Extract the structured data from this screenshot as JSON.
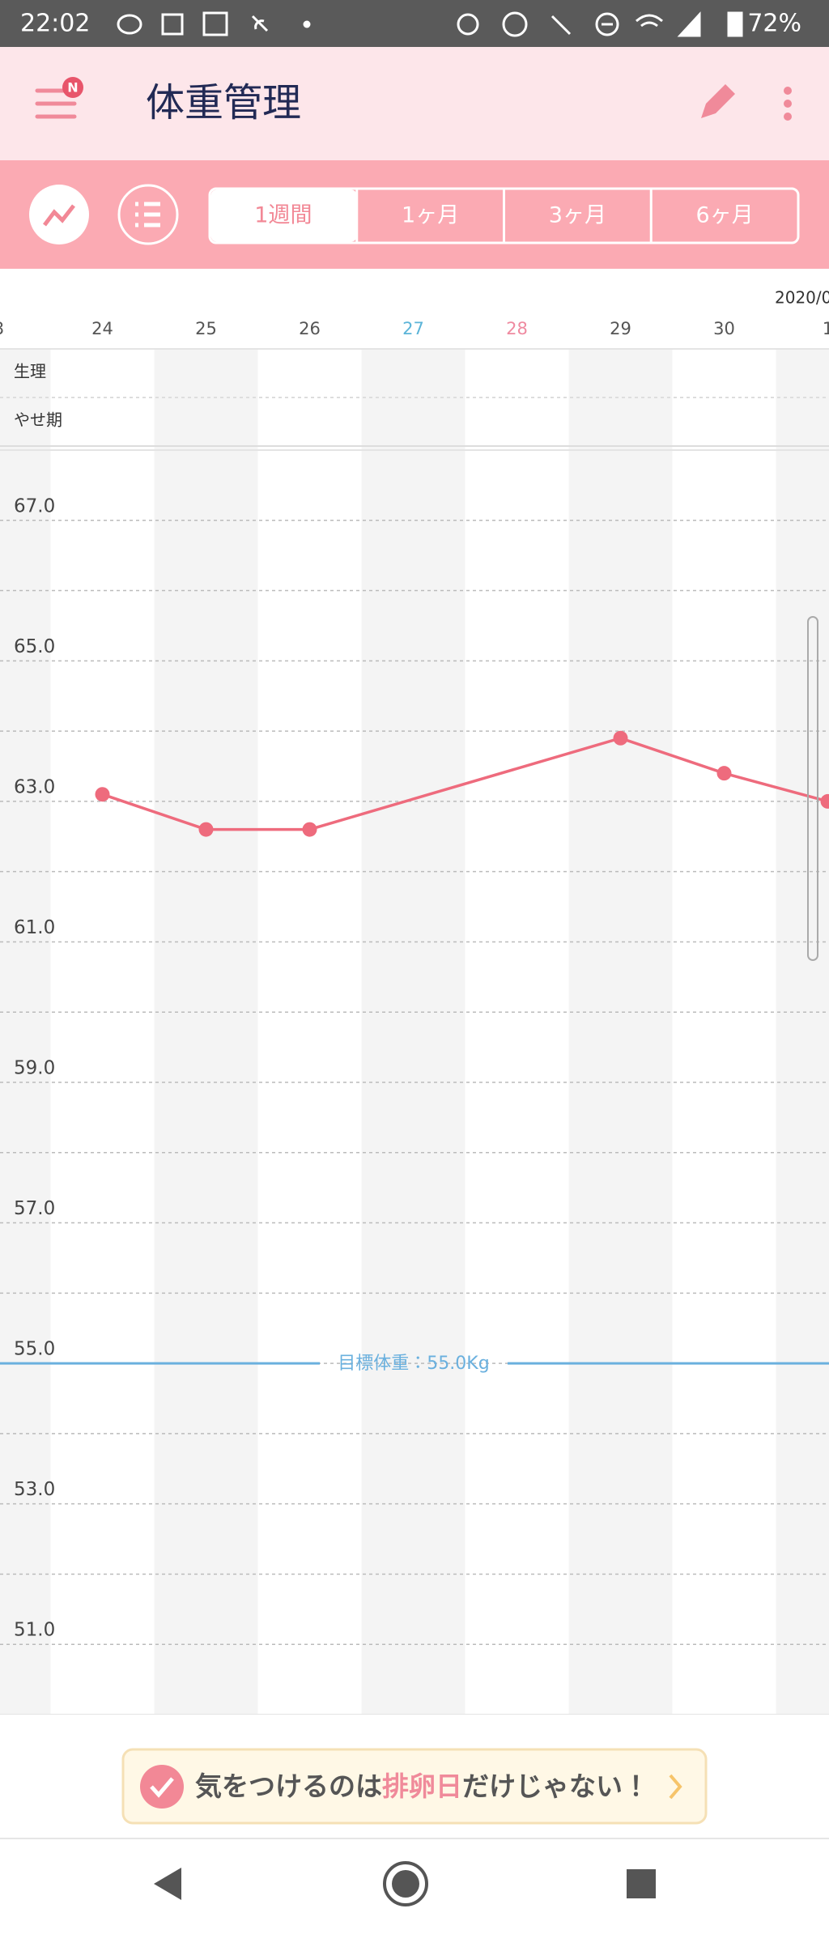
{
  "status_bar": {
    "time": "22:02",
    "battery": "72%"
  },
  "header": {
    "title": "体重管理",
    "badge": "N"
  },
  "tabs": [
    "1週間",
    "1ヶ月",
    "3ヶ月",
    "6ヶ月"
  ],
  "chart_data": {
    "type": "line",
    "date_label": "2020/0",
    "categories": [
      "3",
      "24",
      "25",
      "26",
      "27",
      "28",
      "29",
      "30",
      "1"
    ],
    "category_colors": [
      "#555555",
      "#555555",
      "#555555",
      "#555555",
      "#5bb4d8",
      "#ef8aa0",
      "#555555",
      "#555555",
      "#555555"
    ],
    "row_labels": [
      "生理",
      "やせ期"
    ],
    "series": [
      {
        "color": "#ee6b7d",
        "values": [
          null,
          63.1,
          62.6,
          62.6,
          null,
          null,
          63.9,
          63.4,
          63.0
        ]
      }
    ],
    "connect_gaps": true,
    "ylim": [
      50,
      68
    ],
    "yticks": [
      {
        "value": 51,
        "label": "51.0"
      },
      {
        "value": 53,
        "label": "53.0"
      },
      {
        "value": 55,
        "label": "55.0"
      },
      {
        "value": 57,
        "label": "57.0"
      },
      {
        "value": 59,
        "label": "59.0"
      },
      {
        "value": 61,
        "label": "61.0"
      },
      {
        "value": 63,
        "label": "63.0"
      },
      {
        "value": 65,
        "label": "65.0"
      },
      {
        "value": 67,
        "label": "67.0"
      }
    ],
    "grid_lines": [
      51,
      52,
      53,
      54,
      55,
      56,
      57,
      58,
      59,
      60,
      61,
      62,
      63,
      64,
      65,
      66,
      67
    ],
    "target": {
      "value": 55,
      "label": "目標体重：55.0Kg",
      "color": "#6ab0de"
    }
  },
  "banner": {
    "parts": [
      "気をつけるのは",
      "排卵日",
      "だけじゃない！"
    ]
  }
}
